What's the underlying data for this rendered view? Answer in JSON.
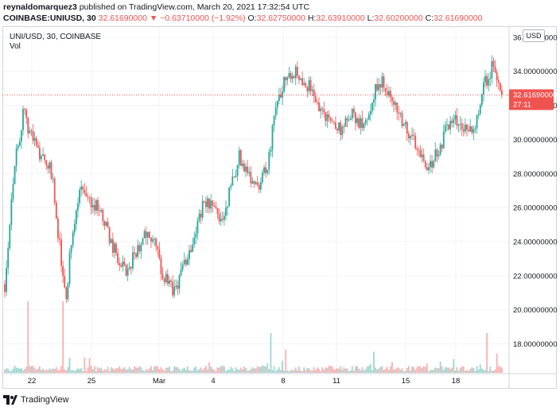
{
  "header": {
    "author": "reynaldomarquez3",
    "published_text": "published on TradingView.com, March 20, 2021 17:32:54 UTC",
    "symbol": "COINBASE:UNIUSD, 30",
    "price": "32.61690000",
    "change_arrow": "▼",
    "change": "−0.63710000 (−1.92%)",
    "o_label": "O:",
    "o_value": "32.62750000",
    "h_label": "H:",
    "h_value": "32.63910000",
    "l_label": "L:",
    "l_value": "32.60200000",
    "c_label": "C:",
    "c_value": "32.61690000"
  },
  "pane": {
    "title": "UNI/USD, 30, COINBASE",
    "volume_label": "Vol",
    "currency": "USD",
    "last_price_label": "32.61690000",
    "countdown": "27:11"
  },
  "footer": {
    "brand": "TradingView"
  },
  "colors": {
    "up": "#26a69a",
    "down": "#ef5350",
    "price_line": "#ef5350",
    "grid": "#f0f3fa"
  },
  "chart_data": {
    "type": "candlestick",
    "title": "UNI/USD, 30, COINBASE",
    "ylabel": "USD",
    "ylim": [
      16.3,
      36.6
    ],
    "y_ticks": [
      {
        "value": 18,
        "label": "18.00000000"
      },
      {
        "value": 20,
        "label": "20.00000000"
      },
      {
        "value": 22,
        "label": "22.00000000"
      },
      {
        "value": 24,
        "label": "24.00000000"
      },
      {
        "value": 26,
        "label": "26.00000000"
      },
      {
        "value": 28,
        "label": "28.00000000"
      },
      {
        "value": 30,
        "label": "30.00000000"
      },
      {
        "value": 32,
        "label": "32.00000000"
      },
      {
        "value": 34,
        "label": "34.00000000"
      },
      {
        "value": 36,
        "label": "36.00000000"
      }
    ],
    "x_ticks": [
      "22",
      "25",
      "Mar",
      "4",
      "8",
      "11",
      "15",
      "18"
    ],
    "last_price": 32.6169,
    "path_points": [
      [
        0,
        21.5
      ],
      [
        2,
        28.5
      ],
      [
        4,
        31.5
      ],
      [
        6,
        30.0
      ],
      [
        8,
        29.0
      ],
      [
        10,
        28.0
      ],
      [
        12,
        23.0
      ],
      [
        13,
        20.2
      ],
      [
        14,
        23.5
      ],
      [
        16,
        27.0
      ],
      [
        18,
        26.5
      ],
      [
        20,
        26.0
      ],
      [
        22,
        24.5
      ],
      [
        24,
        23.0
      ],
      [
        26,
        22.0
      ],
      [
        28,
        23.5
      ],
      [
        30,
        24.5
      ],
      [
        32,
        23.7
      ],
      [
        34,
        21.8
      ],
      [
        36,
        21.0
      ],
      [
        38,
        22.5
      ],
      [
        40,
        24.0
      ],
      [
        42,
        26.0
      ],
      [
        44,
        26.3
      ],
      [
        46,
        25.0
      ],
      [
        48,
        27.0
      ],
      [
        50,
        29.0
      ],
      [
        52,
        28.0
      ],
      [
        54,
        27.3
      ],
      [
        56,
        28.5
      ],
      [
        58,
        32.0
      ],
      [
        60,
        34.0
      ],
      [
        62,
        34.0
      ],
      [
        64,
        33.5
      ],
      [
        66,
        32.5
      ],
      [
        68,
        31.5
      ],
      [
        70,
        31.0
      ],
      [
        72,
        30.5
      ],
      [
        74,
        31.5
      ],
      [
        76,
        30.8
      ],
      [
        78,
        32.0
      ],
      [
        80,
        33.5
      ],
      [
        82,
        32.5
      ],
      [
        84,
        31.5
      ],
      [
        86,
        30.5
      ],
      [
        88,
        29.5
      ],
      [
        90,
        28.5
      ],
      [
        92,
        29.0
      ],
      [
        94,
        30.5
      ],
      [
        96,
        31.0
      ],
      [
        98,
        30.8
      ],
      [
        100,
        30.5
      ],
      [
        102,
        33.0
      ],
      [
        104,
        34.3
      ],
      [
        105,
        33.2
      ],
      [
        106,
        32.6
      ]
    ]
  }
}
